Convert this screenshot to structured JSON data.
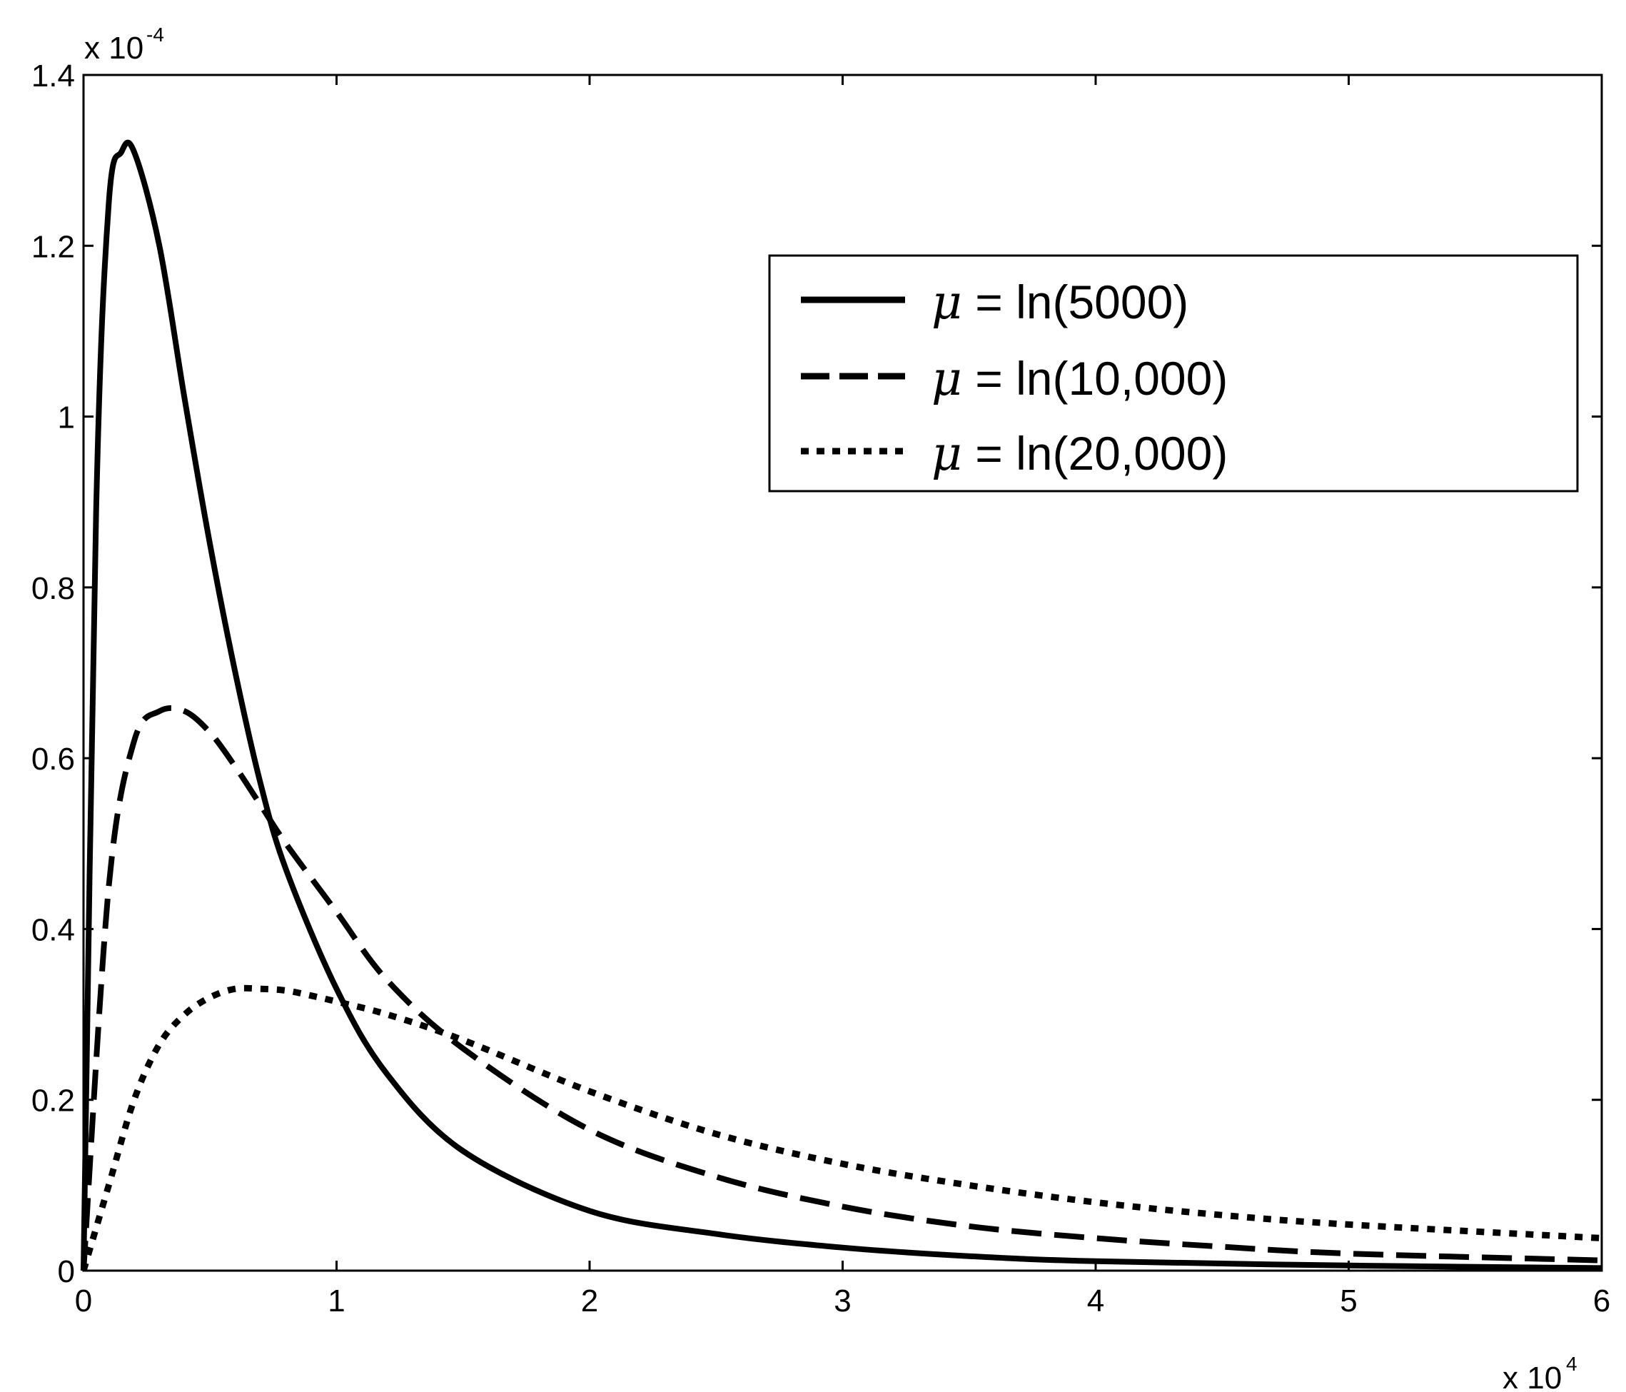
{
  "chart_data": {
    "type": "line",
    "title": "",
    "xlabel": "",
    "ylabel": "",
    "x_multiplier_label": "x 10",
    "x_multiplier_exponent": "4",
    "y_multiplier_label": "x 10",
    "y_multiplier_exponent": "-4",
    "xlim": [
      0,
      6
    ],
    "ylim": [
      0,
      1.4
    ],
    "x_ticks": [
      "0",
      "1",
      "2",
      "3",
      "4",
      "5",
      "6"
    ],
    "y_ticks": [
      "0",
      "0.2",
      "0.4",
      "0.6",
      "0.8",
      "1",
      "1.2",
      "1.4"
    ],
    "grid": false,
    "legend_position": "top-right",
    "series": [
      {
        "name": "μ = ln(5000)",
        "label_rest": " = ln(5000)",
        "style": "solid",
        "x": [
          0,
          0.05,
          0.1,
          0.15,
          0.2,
          0.3,
          0.4,
          0.5,
          0.6,
          0.7,
          0.8,
          1.0,
          1.2,
          1.5,
          2.0,
          2.5,
          3.0,
          3.5,
          4.0,
          5.0,
          6.0
        ],
        "y": [
          0,
          0.89,
          1.25,
          1.31,
          1.31,
          1.2,
          1.02,
          0.85,
          0.7,
          0.57,
          0.47,
          0.33,
          0.23,
          0.14,
          0.07,
          0.043,
          0.027,
          0.017,
          0.011,
          0.006,
          0.003
        ]
      },
      {
        "name": "μ = ln(10,000)",
        "label_rest": " = ln(10,000)",
        "style": "dashed",
        "x": [
          0,
          0.1,
          0.2,
          0.3,
          0.4,
          0.5,
          0.6,
          0.7,
          0.8,
          1.0,
          1.2,
          1.5,
          2.0,
          2.5,
          3.0,
          3.5,
          4.0,
          4.5,
          5.0,
          6.0
        ],
        "y": [
          0,
          0.45,
          0.62,
          0.655,
          0.655,
          0.63,
          0.59,
          0.545,
          0.5,
          0.42,
          0.34,
          0.26,
          0.165,
          0.11,
          0.075,
          0.052,
          0.038,
          0.028,
          0.02,
          0.012
        ]
      },
      {
        "name": "μ = ln(20,000)",
        "label_rest": " = ln(20,000)",
        "style": "dotted",
        "x": [
          0,
          0.1,
          0.2,
          0.3,
          0.4,
          0.5,
          0.6,
          0.7,
          0.8,
          0.9,
          1.0,
          1.2,
          1.5,
          2.0,
          2.5,
          3.0,
          3.5,
          4.0,
          4.5,
          5.0,
          6.0
        ],
        "y": [
          0,
          0.1,
          0.2,
          0.265,
          0.3,
          0.32,
          0.33,
          0.33,
          0.328,
          0.322,
          0.315,
          0.3,
          0.27,
          0.21,
          0.16,
          0.125,
          0.1,
          0.08,
          0.065,
          0.054,
          0.038
        ]
      }
    ]
  }
}
